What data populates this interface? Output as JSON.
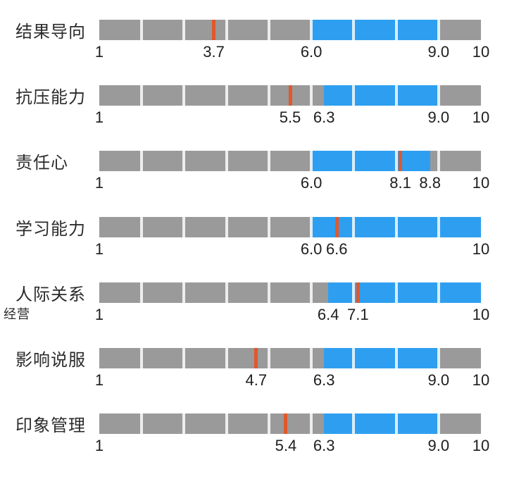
{
  "chart_data": {
    "type": "bar",
    "variant": "bullet-band-chart",
    "title": "",
    "xlabel": "",
    "ylabel": "",
    "legend": null,
    "grid": false,
    "scale": {
      "min": 1,
      "max": 10,
      "segment_size": 1,
      "segment_count": 9
    },
    "colors": {
      "track": "#9a9a9a",
      "band": "#2e9ff0",
      "marker": "#e1582b",
      "label_text": "#2b2b2b",
      "tick_text": "#1e1e1e",
      "background": "#ffffff"
    },
    "rows": [
      {
        "label": "结果导向",
        "sublabel": "",
        "score": 3.7,
        "band_start": 6.0,
        "band_end": 9.0,
        "ticks": [
          {
            "value": 1,
            "label": "1"
          },
          {
            "value": 3.7,
            "label": "3.7"
          },
          {
            "value": 6.0,
            "label": "6.0"
          },
          {
            "value": 9.0,
            "label": "9.0"
          },
          {
            "value": 10,
            "label": "10"
          }
        ]
      },
      {
        "label": "抗压能力",
        "sublabel": "",
        "score": 5.5,
        "band_start": 6.3,
        "band_end": 9.0,
        "ticks": [
          {
            "value": 1,
            "label": "1"
          },
          {
            "value": 5.5,
            "label": "5.5"
          },
          {
            "value": 6.3,
            "label": "6.3"
          },
          {
            "value": 9.0,
            "label": "9.0"
          },
          {
            "value": 10,
            "label": "10"
          }
        ]
      },
      {
        "label": "责任心",
        "sublabel": "",
        "score": 8.1,
        "band_start": 6.0,
        "band_end": 8.8,
        "ticks": [
          {
            "value": 1,
            "label": "1"
          },
          {
            "value": 6.0,
            "label": "6.0"
          },
          {
            "value": 8.1,
            "label": "8.1"
          },
          {
            "value": 8.8,
            "label": "8.8"
          },
          {
            "value": 10,
            "label": "10"
          }
        ]
      },
      {
        "label": "学习能力",
        "sublabel": "",
        "score": 6.6,
        "band_start": 6.0,
        "band_end": 10,
        "ticks": [
          {
            "value": 1,
            "label": "1"
          },
          {
            "value": 6.0,
            "label": "6.0"
          },
          {
            "value": 6.6,
            "label": "6.6"
          },
          {
            "value": 10,
            "label": "10"
          }
        ]
      },
      {
        "label": "人际关系",
        "sublabel": "经营",
        "score": 7.1,
        "band_start": 6.4,
        "band_end": 10,
        "ticks": [
          {
            "value": 1,
            "label": "1"
          },
          {
            "value": 6.4,
            "label": "6.4"
          },
          {
            "value": 7.1,
            "label": "7.1"
          },
          {
            "value": 10,
            "label": "10"
          }
        ]
      },
      {
        "label": "影响说服",
        "sublabel": "",
        "score": 4.7,
        "band_start": 6.3,
        "band_end": 9.0,
        "ticks": [
          {
            "value": 1,
            "label": "1"
          },
          {
            "value": 4.7,
            "label": "4.7"
          },
          {
            "value": 6.3,
            "label": "6.3"
          },
          {
            "value": 9.0,
            "label": "9.0"
          },
          {
            "value": 10,
            "label": "10"
          }
        ]
      },
      {
        "label": "印象管理",
        "sublabel": "",
        "score": 5.4,
        "band_start": 6.3,
        "band_end": 9.0,
        "ticks": [
          {
            "value": 1,
            "label": "1"
          },
          {
            "value": 5.4,
            "label": "5.4"
          },
          {
            "value": 6.3,
            "label": "6.3"
          },
          {
            "value": 9.0,
            "label": "9.0"
          },
          {
            "value": 10,
            "label": "10"
          }
        ]
      }
    ]
  }
}
